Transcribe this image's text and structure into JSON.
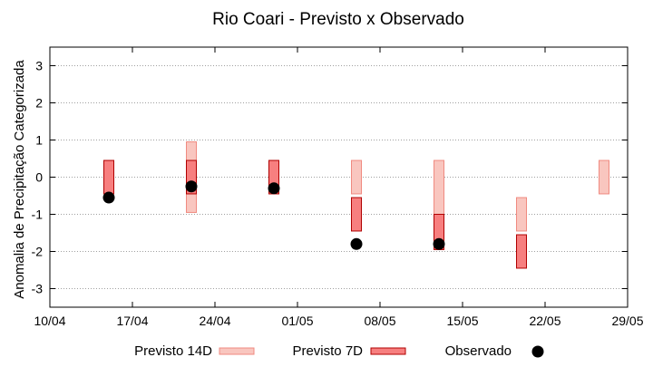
{
  "chart_data": {
    "type": "bar",
    "title": "Rio Coari - Previsto x Observado",
    "xlabel": "",
    "ylabel": "Anomalia de Precipitação Categorizada",
    "ylim": [
      -3.5,
      3.5
    ],
    "xlim": [
      "2024-04-10",
      "2024-05-29"
    ],
    "yticks": [
      -3,
      -2,
      -1,
      0,
      1,
      2,
      3
    ],
    "xticks": [
      {
        "date": "2024-04-10",
        "label": "10/04"
      },
      {
        "date": "2024-04-17",
        "label": "17/04"
      },
      {
        "date": "2024-04-24",
        "label": "24/04"
      },
      {
        "date": "2024-05-01",
        "label": "01/05"
      },
      {
        "date": "2024-05-08",
        "label": "08/05"
      },
      {
        "date": "2024-05-15",
        "label": "15/05"
      },
      {
        "date": "2024-05-22",
        "label": "22/05"
      },
      {
        "date": "2024-05-29",
        "label": "29/05"
      }
    ],
    "grid": true,
    "legend_position": "bottom",
    "series": [
      {
        "name": "Previsto 14D",
        "kind": "range",
        "fill": "#f9c6bf",
        "stroke": "#f08a80",
        "points": [
          {
            "date": "2024-04-15",
            "low": -0.45,
            "high": 0.45
          },
          {
            "date": "2024-04-22",
            "low": -0.95,
            "high": 0.95
          },
          {
            "date": "2024-04-29",
            "low": -0.45,
            "high": 0.45
          },
          {
            "date": "2024-05-06",
            "low": -0.45,
            "high": 0.45
          },
          {
            "date": "2024-05-13",
            "low": -1.45,
            "high": 0.45
          },
          {
            "date": "2024-05-20",
            "low": -1.45,
            "high": -0.55
          },
          {
            "date": "2024-05-27",
            "low": -0.45,
            "high": 0.45
          }
        ]
      },
      {
        "name": "Previsto 7D",
        "kind": "range",
        "fill": "#f77f7f",
        "stroke": "#b00000",
        "points": [
          {
            "date": "2024-04-15",
            "low": -0.45,
            "high": 0.45
          },
          {
            "date": "2024-04-22",
            "low": -0.45,
            "high": 0.45
          },
          {
            "date": "2024-04-29",
            "low": -0.45,
            "high": 0.45
          },
          {
            "date": "2024-05-06",
            "low": -1.45,
            "high": -0.55
          },
          {
            "date": "2024-05-13",
            "low": -1.95,
            "high": -1.0
          },
          {
            "date": "2024-05-20",
            "low": -2.45,
            "high": -1.55
          }
        ]
      },
      {
        "name": "Observado",
        "kind": "point",
        "color": "#000000",
        "points": [
          {
            "date": "2024-04-15",
            "value": -0.55
          },
          {
            "date": "2024-04-22",
            "value": -0.25
          },
          {
            "date": "2024-04-29",
            "value": -0.3
          },
          {
            "date": "2024-05-06",
            "value": -1.8
          },
          {
            "date": "2024-05-13",
            "value": -1.8
          }
        ]
      }
    ]
  }
}
